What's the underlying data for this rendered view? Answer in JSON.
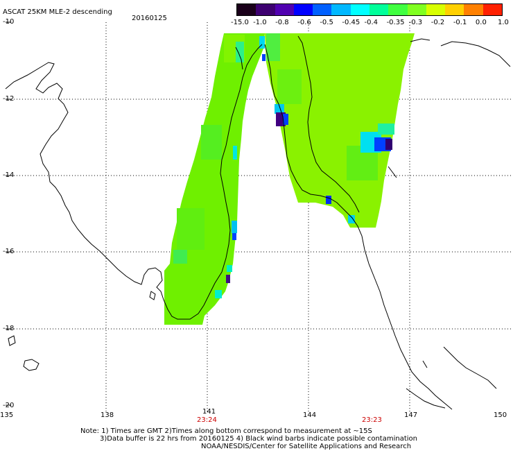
{
  "header": {
    "product": "ASCAT 25KM MLE-2 descending",
    "date": "20160125"
  },
  "colorbar": {
    "labels": [
      "-15.0",
      "-1.0",
      "-0.8",
      "-0.6",
      "-0.5",
      "-0.45",
      "-0.4",
      "-0.35",
      "-0.3",
      "-0.2",
      "-0.1",
      "0.0",
      "1.0"
    ],
    "colors": [
      "#1a001a",
      "#3d0070",
      "#5000b0",
      "#0000ff",
      "#0060ff",
      "#00b8ff",
      "#00ffff",
      "#00ff9a",
      "#40ff40",
      "#80ff20",
      "#d8ff00",
      "#ffd000",
      "#ff8000",
      "#ff2000"
    ]
  },
  "axes": {
    "lat_labels": [
      "-10",
      "-12",
      "-14",
      "-16",
      "-18",
      "-20"
    ],
    "lon_labels": [
      "135",
      "138",
      "141",
      "144",
      "147",
      "150"
    ],
    "times": [
      "23:24",
      "23:23"
    ]
  },
  "notes": {
    "line1": "Note: 1) Times are GMT 2)Times along bottom correspond to measurement at ~15S",
    "line2": "3)Data buffer is 22 hrs from 20160125 4) Black wind barbs indicate possible contamination",
    "line3": "NOAA/NESDIS/Center for Satellite Applications and Research"
  },
  "map_colors": {
    "swath_green": "#7af000",
    "swath_light": "#8cf400",
    "swath_teal": "#30f050",
    "cyan": "#00e8f0",
    "blue": "#0040ff",
    "purple": "#400090"
  }
}
